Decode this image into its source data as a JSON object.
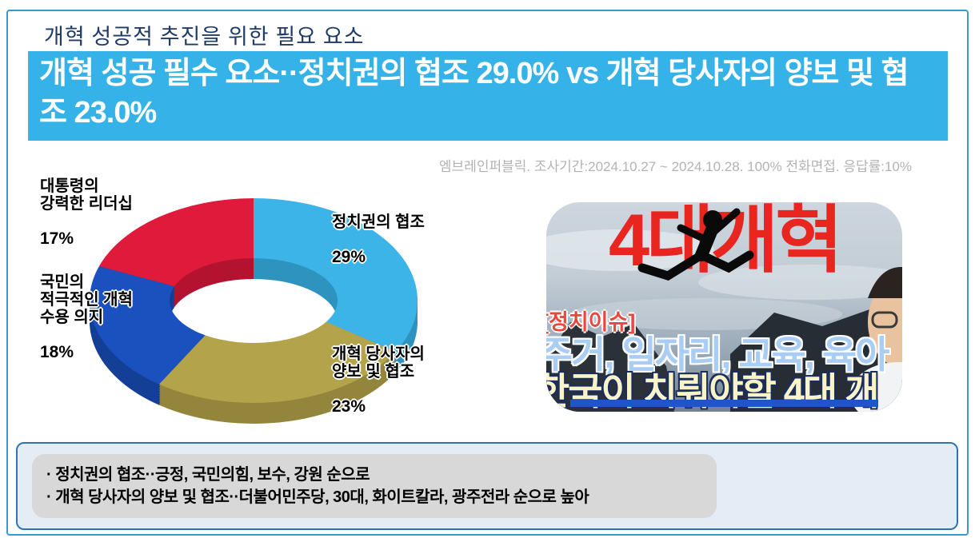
{
  "page": {
    "title": "개혁 성공적 추진을 위한 필요 요소",
    "banner_text": "개혁 성공 필수 요소··정치권의 협조 29.0% vs 개혁 당사자의 양보 및 협조 23.0%",
    "survey_note": "엠브레인퍼블릭. 조사기간:2024.10.27 ~ 2024.10.28. 100% 전화면접. 응답률:10%"
  },
  "colors": {
    "page_border": "#3599d6",
    "banner_bg": "#35b3e8",
    "banner_text": "#ffffff",
    "title_text": "#1f3b67",
    "note_text": "#b3b3b3",
    "summary_border": "#2e74b5",
    "summary_bg": "#e4edf6",
    "summary_inner_bg": "#d8d8d8"
  },
  "chart_data": {
    "type": "pie",
    "subtype": "3d-donut",
    "title": "개혁 성공 필수 요소",
    "categories": [
      "정치권의 협조",
      "개혁 당사자의 양보 및 협조",
      "국민의 적극적인 개혁 수용 의지",
      "대통령의 강력한 리더십"
    ],
    "values": [
      29,
      23,
      18,
      17
    ],
    "unit": "%",
    "colors": [
      "#3cb4e7",
      "#b3a44b",
      "#1a51be",
      "#df1a3b"
    ],
    "side_colors": [
      "#2e93be",
      "#93863c",
      "#143f96",
      "#b41330"
    ],
    "start_angle_deg": 0,
    "direction": "clockwise",
    "legend_position": "callouts-around",
    "callouts": [
      {
        "lines": [
          "정치권의 협조"
        ],
        "value": "29%"
      },
      {
        "lines": [
          "개혁 당사자의",
          "양보 및 협조"
        ],
        "value": "23%"
      },
      {
        "lines": [
          "국민의",
          "적극적인 개혁",
          "수용 의지"
        ],
        "value": "18%"
      },
      {
        "lines": [
          "대통령의",
          "강력한 리더십"
        ],
        "value": "17%"
      }
    ]
  },
  "thumbnail": {
    "headline": "4대개혁",
    "tag": "[정치이슈]",
    "line1": "주거, 일자리, 교육, 육아",
    "line2": "한국이 치뤄야할 4대 개"
  },
  "summary": {
    "bullets": [
      "· 정치권의 협조··긍정, 국민의힘, 보수, 강원 순으로",
      "· 개혁 당사자의 양보 및 협조··더불어민주당, 30대, 화이트칼라, 광주전라 순으로 높아"
    ]
  }
}
